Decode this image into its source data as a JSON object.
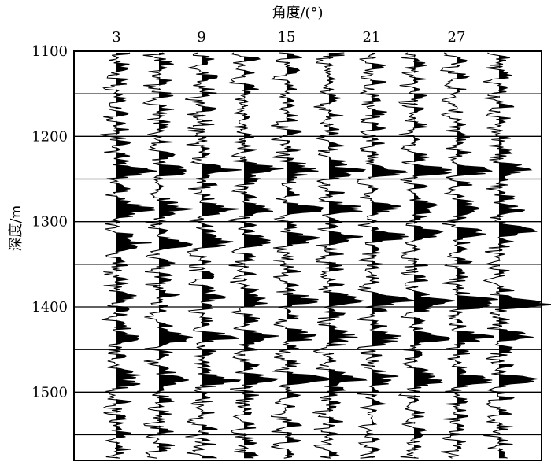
{
  "chart_data": {
    "type": "seismic_gather",
    "title": "",
    "xlabel": "角度/(°)",
    "ylabel": "深度/m",
    "x_ticks": [
      "3",
      "9",
      "15",
      "21",
      "27"
    ],
    "x_tick_values": [
      3,
      9,
      15,
      21,
      27
    ],
    "trace_angles": [
      3,
      6,
      9,
      12,
      15,
      18,
      21,
      24,
      27,
      30
    ],
    "y_ticks": [
      "1100",
      "1200",
      "1300",
      "1400",
      "1500"
    ],
    "y_tick_values": [
      1100,
      1200,
      1300,
      1400,
      1500
    ],
    "ylim": [
      1100,
      1580
    ],
    "xlim": [
      0,
      33
    ],
    "y_inverted": true,
    "grid_y": [
      1150,
      1200,
      1250,
      1300,
      1350,
      1400,
      1450,
      1500,
      1550
    ],
    "fill": "positive lobes filled black (variable area wiggle)",
    "strong_event_depths": [
      1240,
      1285,
      1325,
      1395,
      1435,
      1485
    ]
  }
}
